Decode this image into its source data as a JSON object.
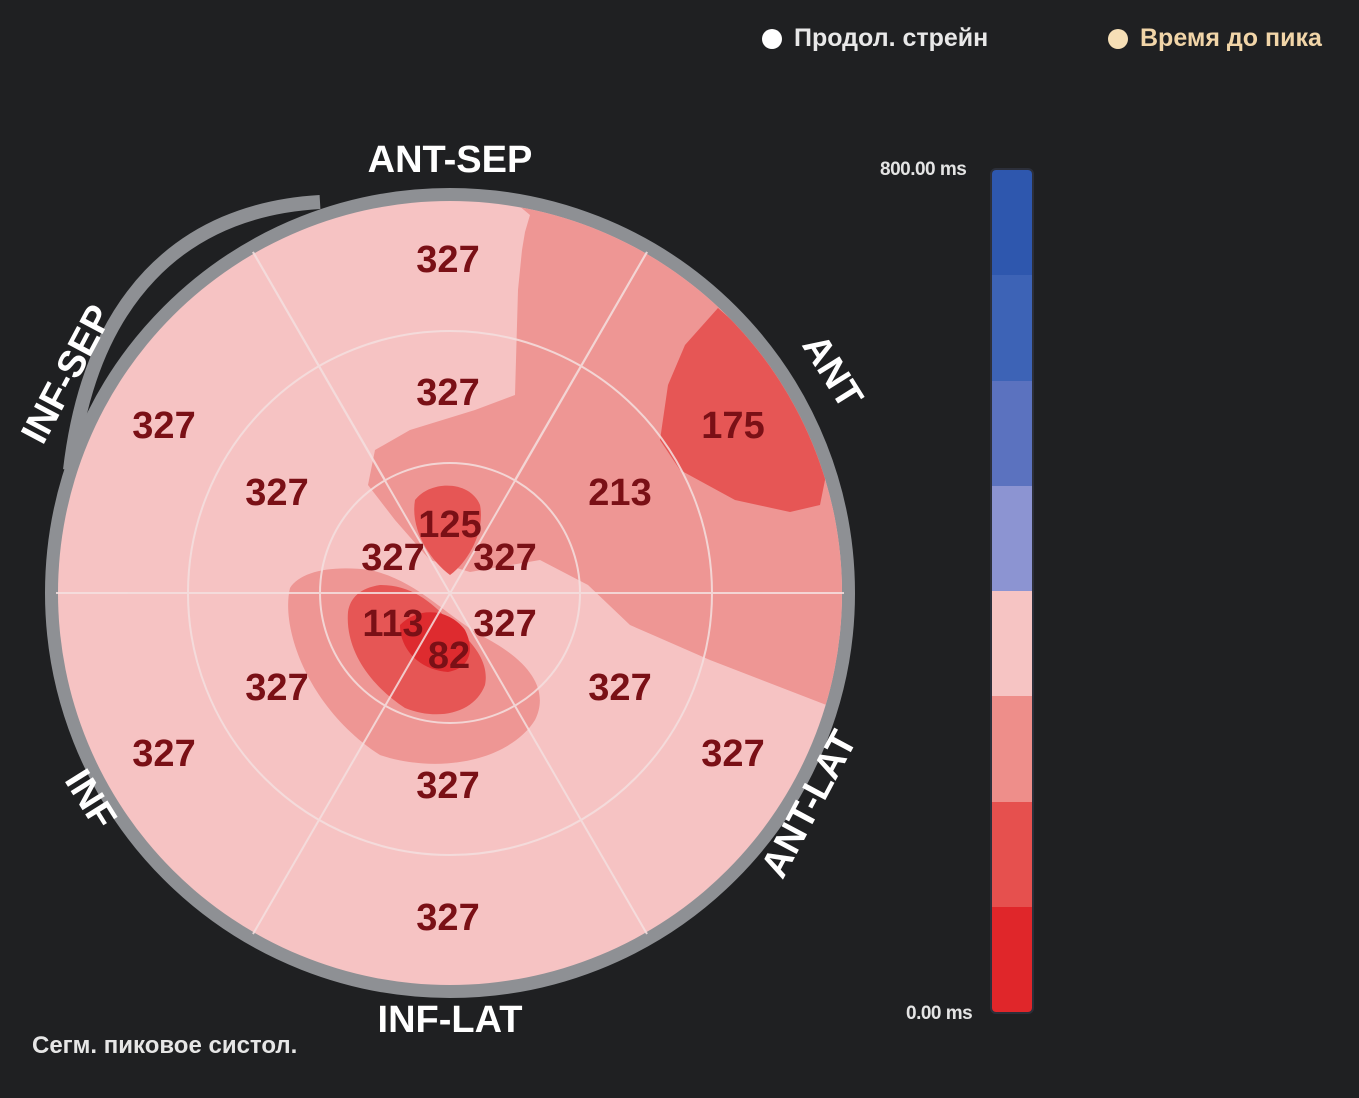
{
  "legend": {
    "strain_label": "Продол. стрейн",
    "ttp_label": "Время до пика"
  },
  "wall_labels": {
    "ant_sep": "ANT-SEP",
    "ant": "ANT",
    "ant_lat": "ANT-LAT",
    "inf_lat": "INF-LAT",
    "inf": "INF",
    "inf_sep": "INF-SEP"
  },
  "segments": {
    "basal": [
      "327",
      "175",
      "327",
      "327",
      "327",
      "327"
    ],
    "mid": [
      "327",
      "213",
      "327",
      "327",
      "327",
      "327"
    ],
    "apical": [
      "125",
      "327",
      "327",
      "82",
      "113",
      "327"
    ]
  },
  "scale": {
    "max_label": "800.00 ms",
    "min_label": "0.00 ms",
    "colors": [
      "#2e57ae",
      "#3d63b6",
      "#5b72bf",
      "#8c94d2",
      "#f6c4c3",
      "#ee8e8a",
      "#e6504e",
      "#e0262a"
    ]
  },
  "footer": {
    "label": "Сегм. пиковое систол."
  },
  "colors": {
    "light": "#f6c3c3",
    "medium": "#ee9694",
    "strong": "#e65655",
    "deep": "#de2b2f",
    "ring": "#8e9094",
    "background": "#1f2022"
  }
}
